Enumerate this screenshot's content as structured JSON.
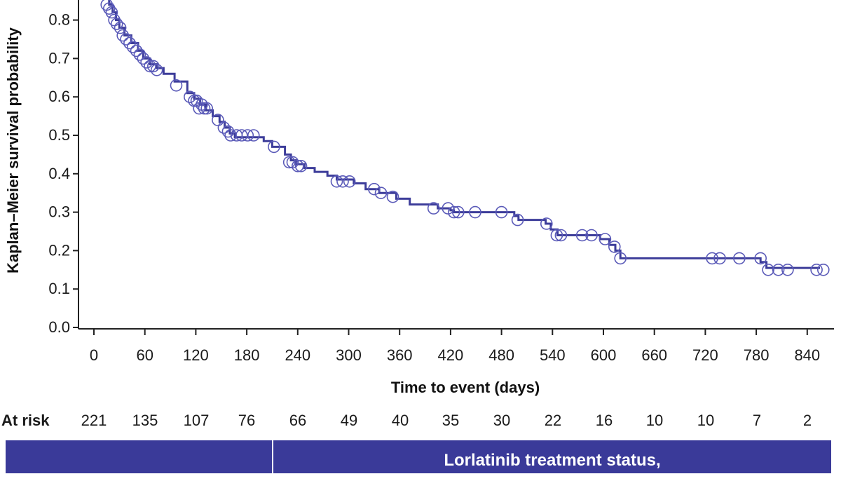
{
  "chart_data": {
    "type": "line",
    "xlabel": "Time to event (days)",
    "ylabel": "Kaplan–Meier survival probability",
    "xlim": [
      -10,
      870
    ],
    "ylim": [
      0,
      0.86
    ],
    "x_ticks": [
      0,
      60,
      120,
      180,
      240,
      300,
      360,
      420,
      480,
      540,
      600,
      660,
      720,
      780,
      840
    ],
    "y_ticks": [
      0.0,
      0.1,
      0.2,
      0.3,
      0.4,
      0.5,
      0.6,
      0.7,
      0.8
    ],
    "x_tick_labels": [
      "0",
      "60",
      "120",
      "180",
      "240",
      "300",
      "360",
      "420",
      "480",
      "540",
      "600",
      "660",
      "720",
      "780",
      "840"
    ],
    "y_tick_labels": [
      "0.0",
      "0.1",
      "0.2",
      "0.3",
      "0.4",
      "0.5",
      "0.6",
      "0.7",
      "0.8"
    ],
    "series": [
      {
        "color": "#3d3d9a",
        "step": [
          [
            14,
            0.86
          ],
          [
            18,
            0.84
          ],
          [
            22,
            0.82
          ],
          [
            26,
            0.8
          ],
          [
            30,
            0.78
          ],
          [
            36,
            0.76
          ],
          [
            44,
            0.74
          ],
          [
            52,
            0.72
          ],
          [
            58,
            0.7
          ],
          [
            66,
            0.685
          ],
          [
            74,
            0.675
          ],
          [
            82,
            0.66
          ],
          [
            95,
            0.64
          ],
          [
            110,
            0.61
          ],
          [
            118,
            0.595
          ],
          [
            125,
            0.58
          ],
          [
            132,
            0.565
          ],
          [
            140,
            0.55
          ],
          [
            148,
            0.535
          ],
          [
            154,
            0.52
          ],
          [
            160,
            0.505
          ],
          [
            166,
            0.495
          ],
          [
            200,
            0.485
          ],
          [
            210,
            0.47
          ],
          [
            225,
            0.45
          ],
          [
            232,
            0.435
          ],
          [
            238,
            0.425
          ],
          [
            248,
            0.415
          ],
          [
            260,
            0.405
          ],
          [
            275,
            0.395
          ],
          [
            286,
            0.385
          ],
          [
            306,
            0.375
          ],
          [
            320,
            0.36
          ],
          [
            336,
            0.35
          ],
          [
            356,
            0.335
          ],
          [
            372,
            0.32
          ],
          [
            405,
            0.31
          ],
          [
            420,
            0.305
          ],
          [
            424,
            0.3
          ],
          [
            495,
            0.29
          ],
          [
            500,
            0.28
          ],
          [
            532,
            0.27
          ],
          [
            538,
            0.255
          ],
          [
            546,
            0.24
          ],
          [
            596,
            0.23
          ],
          [
            607,
            0.215
          ],
          [
            614,
            0.2
          ],
          [
            620,
            0.18
          ],
          [
            785,
            0.17
          ],
          [
            792,
            0.155
          ],
          [
            855,
            0.155
          ]
        ],
        "censored": [
          [
            15,
            0.84
          ],
          [
            18,
            0.83
          ],
          [
            21,
            0.82
          ],
          [
            24,
            0.8
          ],
          [
            27,
            0.79
          ],
          [
            31,
            0.78
          ],
          [
            34,
            0.76
          ],
          [
            38,
            0.75
          ],
          [
            42,
            0.74
          ],
          [
            46,
            0.73
          ],
          [
            50,
            0.72
          ],
          [
            54,
            0.71
          ],
          [
            58,
            0.7
          ],
          [
            62,
            0.69
          ],
          [
            66,
            0.68
          ],
          [
            70,
            0.68
          ],
          [
            74,
            0.67
          ],
          [
            97,
            0.63
          ],
          [
            113,
            0.6
          ],
          [
            118,
            0.59
          ],
          [
            121,
            0.59
          ],
          [
            124,
            0.57
          ],
          [
            127,
            0.58
          ],
          [
            130,
            0.57
          ],
          [
            133,
            0.57
          ],
          [
            146,
            0.54
          ],
          [
            153,
            0.52
          ],
          [
            158,
            0.51
          ],
          [
            161,
            0.5
          ],
          [
            168,
            0.5
          ],
          [
            174,
            0.5
          ],
          [
            181,
            0.5
          ],
          [
            188,
            0.5
          ],
          [
            212,
            0.47
          ],
          [
            230,
            0.43
          ],
          [
            234,
            0.43
          ],
          [
            240,
            0.42
          ],
          [
            244,
            0.42
          ],
          [
            286,
            0.38
          ],
          [
            293,
            0.38
          ],
          [
            301,
            0.38
          ],
          [
            330,
            0.36
          ],
          [
            338,
            0.35
          ],
          [
            352,
            0.34
          ],
          [
            400,
            0.31
          ],
          [
            417,
            0.31
          ],
          [
            424,
            0.3
          ],
          [
            429,
            0.3
          ],
          [
            449,
            0.3
          ],
          [
            480,
            0.3
          ],
          [
            499,
            0.28
          ],
          [
            533,
            0.27
          ],
          [
            545,
            0.24
          ],
          [
            550,
            0.24
          ],
          [
            575,
            0.24
          ],
          [
            586,
            0.24
          ],
          [
            602,
            0.23
          ],
          [
            613,
            0.21
          ],
          [
            620,
            0.18
          ],
          [
            728,
            0.18
          ],
          [
            737,
            0.18
          ],
          [
            760,
            0.18
          ],
          [
            785,
            0.18
          ],
          [
            794,
            0.15
          ],
          [
            806,
            0.15
          ],
          [
            817,
            0.15
          ],
          [
            851,
            0.15
          ],
          [
            859,
            0.15
          ]
        ]
      }
    ]
  },
  "at_risk": {
    "label": "At risk",
    "counts": [
      "221",
      "135",
      "107",
      "76",
      "66",
      "49",
      "40",
      "35",
      "30",
      "22",
      "16",
      "10",
      "10",
      "7",
      "2"
    ]
  },
  "status_band": {
    "label": "Lorlatinib treatment status,"
  }
}
